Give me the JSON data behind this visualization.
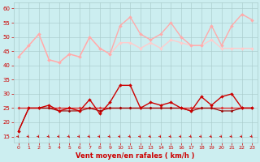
{
  "x": [
    0,
    1,
    2,
    3,
    4,
    5,
    6,
    7,
    8,
    9,
    10,
    11,
    12,
    13,
    14,
    15,
    16,
    17,
    18,
    19,
    20,
    21,
    22,
    23
  ],
  "s0_y": [
    43,
    47,
    51,
    42,
    41,
    44,
    43,
    50,
    46,
    44,
    54,
    57,
    51,
    49,
    51,
    55,
    50,
    47,
    47,
    54,
    47,
    54,
    58,
    56
  ],
  "s1_y": [
    43,
    47,
    51,
    42,
    41,
    44,
    43,
    50,
    46,
    44,
    48,
    48,
    46,
    48,
    46,
    49,
    48,
    47,
    47,
    49,
    46,
    46,
    46,
    46
  ],
  "s2_y": [
    17,
    25,
    25,
    26,
    24,
    25,
    24,
    28,
    23,
    27,
    33,
    33,
    25,
    27,
    26,
    27,
    25,
    24,
    29,
    26,
    29,
    30,
    25,
    25
  ],
  "s3_y": [
    17,
    25,
    25,
    25,
    24,
    24,
    24,
    25,
    24,
    25,
    25,
    25,
    25,
    25,
    25,
    25,
    25,
    24,
    25,
    25,
    24,
    24,
    25,
    25
  ],
  "s4_y": [
    25,
    25,
    25,
    25,
    25,
    25,
    25,
    25,
    25,
    25,
    25,
    25,
    25,
    25,
    25,
    25,
    25,
    25,
    25,
    25,
    25,
    25,
    25,
    25
  ],
  "xlabel": "Vent moyen/en rafales ( km/h )",
  "yticks": [
    15,
    20,
    25,
    30,
    35,
    40,
    45,
    50,
    55,
    60
  ],
  "xticks": [
    0,
    1,
    2,
    3,
    4,
    5,
    6,
    7,
    8,
    9,
    10,
    11,
    12,
    13,
    14,
    15,
    16,
    17,
    18,
    19,
    20,
    21,
    22,
    23
  ],
  "ylim": [
    13,
    62
  ],
  "xlim": [
    -0.5,
    23.5
  ],
  "bg_color": "#cceef0",
  "grid_color": "#aacccc",
  "xlabel_color": "#cc0000",
  "tick_color": "#cc0000",
  "c_light1": "#ffaaaa",
  "c_light2": "#ffcccc",
  "c_dark1": "#cc0000",
  "c_dark2": "#990000",
  "c_mid": "#dd3333"
}
